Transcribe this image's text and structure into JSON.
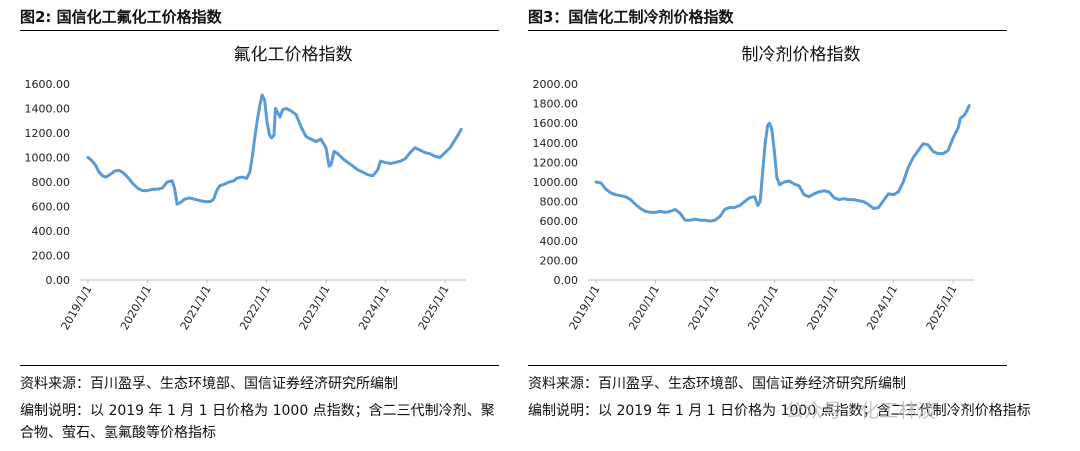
{
  "watermark": "公众号 · 化工林淡",
  "panels": [
    {
      "figure_label": "图2: 国信化工氟化工价格指数",
      "source": "资料来源：百川盈孚、生态环境部、国信证券经济研究所编制",
      "note": "编制说明：以 2019 年 1 月 1 日价格为 1000 点指数；含二三代制冷剂、聚合物、萤石、氢氟酸等价格指标"
    },
    {
      "figure_label": "图3：国信化工制冷剂价格指数",
      "source": "资料来源：百川盈孚、生态环境部、国信证券经济研究所编制",
      "note": "编制说明：以 2019 年 1 月 1 日价格为 1000 点指数；含二三代制冷剂价格指标"
    }
  ],
  "chart_data": [
    {
      "type": "line",
      "title": "氟化工价格指数",
      "color": "#5b9bd5",
      "ylim": [
        0,
        1600
      ],
      "yticks": [
        "0.00",
        "200.00",
        "400.00",
        "600.00",
        "800.00",
        "1000.00",
        "1200.00",
        "1400.00",
        "1600.00"
      ],
      "xticks": [
        "2019/1/1",
        "2020/1/1",
        "2021/1/1",
        "2022/1/1",
        "2023/1/1",
        "2024/1/1",
        "2025/1/1"
      ],
      "xlim": [
        "2019-01-01",
        "2025-04-15"
      ],
      "series": [
        {
          "points": [
            [
              "2019-01-01",
              1000
            ],
            [
              "2019-01-20",
              980
            ],
            [
              "2019-02-15",
              940
            ],
            [
              "2019-03-10",
              880
            ],
            [
              "2019-04-01",
              850
            ],
            [
              "2019-04-20",
              840
            ],
            [
              "2019-05-15",
              860
            ],
            [
              "2019-06-15",
              890
            ],
            [
              "2019-07-10",
              895
            ],
            [
              "2019-08-01",
              880
            ],
            [
              "2019-09-01",
              840
            ],
            [
              "2019-10-01",
              790
            ],
            [
              "2019-11-01",
              750
            ],
            [
              "2019-12-01",
              730
            ],
            [
              "2020-01-01",
              730
            ],
            [
              "2020-02-01",
              740
            ],
            [
              "2020-03-01",
              740
            ],
            [
              "2020-04-01",
              750
            ],
            [
              "2020-05-01",
              800
            ],
            [
              "2020-06-01",
              810
            ],
            [
              "2020-06-15",
              750
            ],
            [
              "2020-07-01",
              620
            ],
            [
              "2020-07-20",
              630
            ],
            [
              "2020-08-15",
              660
            ],
            [
              "2020-09-15",
              670
            ],
            [
              "2020-10-15",
              660
            ],
            [
              "2020-11-15",
              650
            ],
            [
              "2020-12-15",
              640
            ],
            [
              "2021-01-20",
              640
            ],
            [
              "2021-02-10",
              660
            ],
            [
              "2021-03-01",
              730
            ],
            [
              "2021-03-20",
              770
            ],
            [
              "2021-04-15",
              780
            ],
            [
              "2021-05-15",
              800
            ],
            [
              "2021-06-15",
              810
            ],
            [
              "2021-07-01",
              830
            ],
            [
              "2021-08-01",
              840
            ],
            [
              "2021-09-01",
              830
            ],
            [
              "2021-09-20",
              880
            ],
            [
              "2021-10-05",
              1000
            ],
            [
              "2021-10-20",
              1150
            ],
            [
              "2021-11-05",
              1300
            ],
            [
              "2021-11-20",
              1420
            ],
            [
              "2021-12-05",
              1510
            ],
            [
              "2021-12-20",
              1470
            ],
            [
              "2022-01-05",
              1280
            ],
            [
              "2022-01-20",
              1180
            ],
            [
              "2022-02-01",
              1160
            ],
            [
              "2022-02-15",
              1180
            ],
            [
              "2022-02-25",
              1400
            ],
            [
              "2022-03-10",
              1370
            ],
            [
              "2022-03-25",
              1330
            ],
            [
              "2022-04-10",
              1390
            ],
            [
              "2022-05-01",
              1400
            ],
            [
              "2022-06-01",
              1380
            ],
            [
              "2022-07-01",
              1350
            ],
            [
              "2022-08-01",
              1250
            ],
            [
              "2022-09-01",
              1170
            ],
            [
              "2022-10-01",
              1150
            ],
            [
              "2022-11-01",
              1130
            ],
            [
              "2022-12-01",
              1150
            ],
            [
              "2023-01-01",
              1080
            ],
            [
              "2023-01-20",
              930
            ],
            [
              "2023-02-01",
              940
            ],
            [
              "2023-02-20",
              1050
            ],
            [
              "2023-03-15",
              1030
            ],
            [
              "2023-04-15",
              990
            ],
            [
              "2023-05-15",
              960
            ],
            [
              "2023-06-15",
              930
            ],
            [
              "2023-07-15",
              900
            ],
            [
              "2023-08-15",
              880
            ],
            [
              "2023-09-15",
              860
            ],
            [
              "2023-10-15",
              850
            ],
            [
              "2023-11-15",
              900
            ],
            [
              "2023-12-01",
              970
            ],
            [
              "2024-01-01",
              960
            ],
            [
              "2024-02-01",
              950
            ],
            [
              "2024-03-01",
              960
            ],
            [
              "2024-04-01",
              970
            ],
            [
              "2024-05-01",
              990
            ],
            [
              "2024-06-01",
              1040
            ],
            [
              "2024-07-01",
              1080
            ],
            [
              "2024-08-01",
              1060
            ],
            [
              "2024-09-01",
              1040
            ],
            [
              "2024-10-01",
              1030
            ],
            [
              "2024-11-01",
              1010
            ],
            [
              "2024-12-01",
              1000
            ],
            [
              "2025-01-01",
              1040
            ],
            [
              "2025-02-01",
              1080
            ],
            [
              "2025-03-01",
              1140
            ],
            [
              "2025-03-20",
              1180
            ],
            [
              "2025-04-10",
              1230
            ]
          ]
        }
      ]
    },
    {
      "type": "line",
      "title": "制冷剂价格指数",
      "color": "#5b9bd5",
      "ylim": [
        0,
        2000
      ],
      "yticks": [
        "0.00",
        "200.00",
        "400.00",
        "600.00",
        "800.00",
        "1000.00",
        "1200.00",
        "1400.00",
        "1600.00",
        "1800.00",
        "2000.00"
      ],
      "xticks": [
        "2019/1/1",
        "2020/1/1",
        "2021/1/1",
        "2022/1/1",
        "2023/1/1",
        "2024/1/1",
        "2025/1/1"
      ],
      "xlim": [
        "2019-01-01",
        "2025-04-15"
      ],
      "series": [
        {
          "points": [
            [
              "2019-01-01",
              1000
            ],
            [
              "2019-02-01",
              990
            ],
            [
              "2019-03-01",
              930
            ],
            [
              "2019-04-01",
              890
            ],
            [
              "2019-05-01",
              870
            ],
            [
              "2019-06-01",
              860
            ],
            [
              "2019-07-01",
              850
            ],
            [
              "2019-08-01",
              820
            ],
            [
              "2019-09-01",
              770
            ],
            [
              "2019-10-01",
              730
            ],
            [
              "2019-11-01",
              700
            ],
            [
              "2019-12-01",
              690
            ],
            [
              "2020-01-01",
              690
            ],
            [
              "2020-02-01",
              700
            ],
            [
              "2020-03-01",
              690
            ],
            [
              "2020-04-01",
              700
            ],
            [
              "2020-05-01",
              720
            ],
            [
              "2020-06-01",
              680
            ],
            [
              "2020-07-01",
              610
            ],
            [
              "2020-08-01",
              610
            ],
            [
              "2020-09-01",
              620
            ],
            [
              "2020-10-01",
              610
            ],
            [
              "2020-11-01",
              610
            ],
            [
              "2020-12-01",
              600
            ],
            [
              "2021-01-01",
              610
            ],
            [
              "2021-02-01",
              650
            ],
            [
              "2021-03-01",
              720
            ],
            [
              "2021-04-01",
              740
            ],
            [
              "2021-05-01",
              740
            ],
            [
              "2021-06-01",
              760
            ],
            [
              "2021-07-01",
              800
            ],
            [
              "2021-08-01",
              840
            ],
            [
              "2021-09-01",
              850
            ],
            [
              "2021-09-20",
              760
            ],
            [
              "2021-10-05",
              800
            ],
            [
              "2021-10-20",
              1100
            ],
            [
              "2021-11-05",
              1400
            ],
            [
              "2021-11-20",
              1580
            ],
            [
              "2021-12-01",
              1600
            ],
            [
              "2021-12-15",
              1540
            ],
            [
              "2022-01-01",
              1300
            ],
            [
              "2022-01-15",
              1050
            ],
            [
              "2022-02-01",
              970
            ],
            [
              "2022-03-01",
              1000
            ],
            [
              "2022-04-01",
              1010
            ],
            [
              "2022-05-01",
              980
            ],
            [
              "2022-06-01",
              960
            ],
            [
              "2022-07-01",
              870
            ],
            [
              "2022-08-01",
              850
            ],
            [
              "2022-09-01",
              880
            ],
            [
              "2022-10-01",
              900
            ],
            [
              "2022-11-01",
              910
            ],
            [
              "2022-12-01",
              900
            ],
            [
              "2023-01-01",
              840
            ],
            [
              "2023-02-01",
              820
            ],
            [
              "2023-03-01",
              830
            ],
            [
              "2023-04-01",
              820
            ],
            [
              "2023-05-01",
              820
            ],
            [
              "2023-06-01",
              810
            ],
            [
              "2023-07-01",
              800
            ],
            [
              "2023-08-01",
              770
            ],
            [
              "2023-09-01",
              730
            ],
            [
              "2023-10-01",
              740
            ],
            [
              "2023-11-01",
              810
            ],
            [
              "2023-12-01",
              880
            ],
            [
              "2024-01-01",
              870
            ],
            [
              "2024-02-01",
              900
            ],
            [
              "2024-03-01",
              1000
            ],
            [
              "2024-04-01",
              1150
            ],
            [
              "2024-05-01",
              1250
            ],
            [
              "2024-06-01",
              1320
            ],
            [
              "2024-07-01",
              1390
            ],
            [
              "2024-08-01",
              1380
            ],
            [
              "2024-09-01",
              1310
            ],
            [
              "2024-10-01",
              1290
            ],
            [
              "2024-11-01",
              1290
            ],
            [
              "2024-12-01",
              1320
            ],
            [
              "2025-01-01",
              1450
            ],
            [
              "2025-02-01",
              1550
            ],
            [
              "2025-02-15",
              1650
            ],
            [
              "2025-03-10",
              1680
            ],
            [
              "2025-03-25",
              1720
            ],
            [
              "2025-04-10",
              1780
            ]
          ]
        }
      ]
    }
  ]
}
